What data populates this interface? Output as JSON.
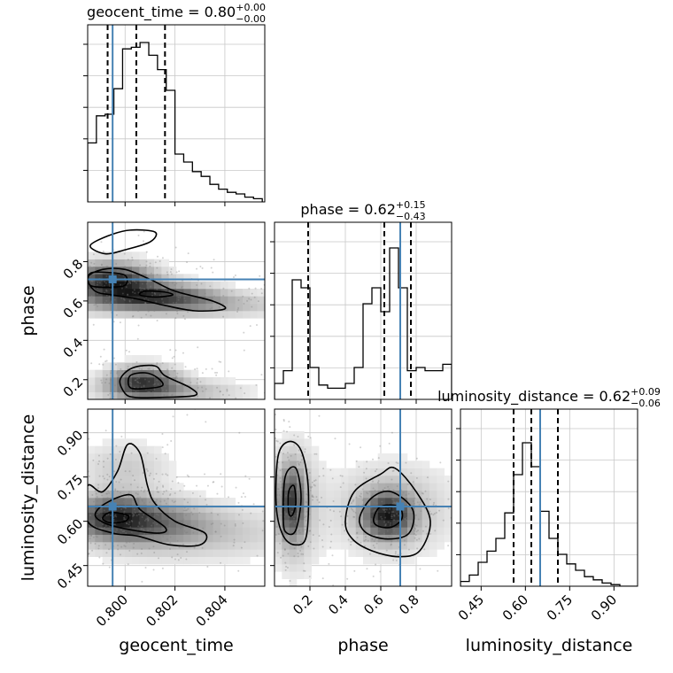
{
  "chart_data": {
    "type": "corner",
    "parameters": [
      "geocent_time",
      "phase",
      "luminosity_distance"
    ],
    "truths": {
      "geocent_time": 0.7995,
      "phase": 0.71,
      "luminosity_distance": 0.65
    },
    "truth_color": "#4682b4",
    "panels": [
      {
        "kind": "histogram",
        "param": "geocent_time",
        "title": {
          "prefix": "geocent_time = 0.80",
          "plus": "+0.00",
          "minus": "−0.00"
        },
        "xlim": [
          0.7985,
          0.8056
        ],
        "ylim": [
          0,
          1
        ],
        "bin_edges": [
          0.7985,
          0.79885,
          0.7992,
          0.79955,
          0.7999,
          0.80025,
          0.8006,
          0.80095,
          0.8013,
          0.80165,
          0.802,
          0.80235,
          0.8027,
          0.80305,
          0.8034,
          0.80375,
          0.8041,
          0.80445,
          0.8048,
          0.80515,
          0.8055
        ],
        "counts": [
          0.37,
          0.54,
          0.55,
          0.71,
          0.96,
          0.97,
          1.0,
          0.92,
          0.83,
          0.7,
          0.3,
          0.25,
          0.19,
          0.16,
          0.11,
          0.08,
          0.06,
          0.05,
          0.03,
          0.02
        ],
        "quantile_lines": [
          0.7993,
          0.80045,
          0.8016
        ],
        "truth": 0.7995
      },
      {
        "kind": "histogram",
        "param": "phase",
        "title": {
          "prefix": "phase = 0.62",
          "plus": "+0.15",
          "minus": "−0.43"
        },
        "xlim": [
          0.0,
          1.0
        ],
        "ylim": [
          0,
          1
        ],
        "bin_edges": [
          0.0,
          0.05,
          0.1,
          0.15,
          0.2,
          0.25,
          0.3,
          0.35,
          0.4,
          0.45,
          0.5,
          0.55,
          0.6,
          0.65,
          0.7,
          0.75,
          0.8,
          0.85,
          0.9,
          0.95,
          1.0
        ],
        "counts": [
          0.1,
          0.18,
          0.75,
          0.7,
          0.2,
          0.09,
          0.07,
          0.07,
          0.1,
          0.2,
          0.6,
          0.7,
          0.55,
          0.95,
          0.7,
          0.18,
          0.2,
          0.18,
          0.18,
          0.22
        ],
        "quantile_lines": [
          0.19,
          0.62,
          0.77
        ],
        "truth": 0.71
      },
      {
        "kind": "histogram",
        "param": "luminosity_distance",
        "title": {
          "prefix": "luminosity_distance = 0.62",
          "plus": "+0.09",
          "minus": "−0.06"
        },
        "xlim": [
          0.38,
          0.98
        ],
        "ylim": [
          0,
          1
        ],
        "bin_edges": [
          0.38,
          0.41,
          0.44,
          0.47,
          0.5,
          0.53,
          0.56,
          0.59,
          0.62,
          0.65,
          0.68,
          0.71,
          0.74,
          0.77,
          0.8,
          0.83,
          0.86,
          0.89,
          0.92,
          0.95,
          0.98
        ],
        "counts": [
          0.03,
          0.07,
          0.15,
          0.22,
          0.3,
          0.46,
          0.7,
          0.9,
          0.75,
          0.47,
          0.3,
          0.2,
          0.14,
          0.1,
          0.06,
          0.04,
          0.02,
          0.01,
          0.0,
          0.0
        ],
        "quantile_lines": [
          0.56,
          0.62,
          0.71
        ],
        "truth": 0.65
      },
      {
        "kind": "density2d",
        "x": "geocent_time",
        "y": "phase",
        "xlim": [
          0.7985,
          0.8056
        ],
        "ylim": [
          0.1,
          1.0
        ],
        "blobs": [
          {
            "cx": 0.7995,
            "cy": 0.7,
            "sx": 0.0011,
            "sy": 0.06,
            "rot": -12,
            "w": 1.0
          },
          {
            "cx": 0.8013,
            "cy": 0.63,
            "sx": 0.0015,
            "sy": 0.04,
            "rot": -8,
            "w": 0.7
          },
          {
            "cx": 0.802,
            "cy": 0.58,
            "sx": 0.0028,
            "sy": 0.04,
            "rot": -6,
            "w": 0.35
          },
          {
            "cx": 0.8007,
            "cy": 0.19,
            "sx": 0.0009,
            "sy": 0.05,
            "rot": 0,
            "w": 0.85
          },
          {
            "cx": 0.8018,
            "cy": 0.14,
            "sx": 0.0018,
            "sy": 0.04,
            "rot": 0,
            "w": 0.3
          }
        ],
        "contours": [
          [
            [
              0.7988,
              0.65
            ],
            [
              0.7985,
              0.72
            ],
            [
              0.7991,
              0.76
            ],
            [
              0.8,
              0.76
            ],
            [
              0.801,
              0.71
            ],
            [
              0.802,
              0.65
            ],
            [
              0.8035,
              0.6
            ],
            [
              0.804,
              0.56
            ],
            [
              0.8028,
              0.55
            ],
            [
              0.8015,
              0.58
            ],
            [
              0.8005,
              0.61
            ],
            [
              0.7995,
              0.63
            ]
          ],
          [
            [
              0.7986,
              0.68
            ],
            [
              0.7986,
              0.74
            ],
            [
              0.7993,
              0.745
            ],
            [
              0.8,
              0.73
            ],
            [
              0.8,
              0.68
            ],
            [
              0.7993,
              0.67
            ]
          ],
          [
            [
              0.8006,
              0.63
            ],
            [
              0.8008,
              0.65
            ],
            [
              0.8016,
              0.645
            ],
            [
              0.8019,
              0.63
            ],
            [
              0.8012,
              0.62
            ]
          ],
          [
            [
              0.7986,
              0.88
            ],
            [
              0.7993,
              0.93
            ],
            [
              0.8002,
              0.96
            ],
            [
              0.8012,
              0.95
            ],
            [
              0.801,
              0.9
            ],
            [
              0.8,
              0.86
            ],
            [
              0.7992,
              0.84
            ]
          ],
          [
            [
              0.8,
              0.13
            ],
            [
              0.7998,
              0.2
            ],
            [
              0.8003,
              0.26
            ],
            [
              0.8012,
              0.27
            ],
            [
              0.8016,
              0.22
            ],
            [
              0.8026,
              0.16
            ],
            [
              0.8028,
              0.12
            ],
            [
              0.8014,
              0.11
            ],
            [
              0.8004,
              0.11
            ]
          ],
          [
            [
              0.8002,
              0.16
            ],
            [
              0.8002,
              0.22
            ],
            [
              0.8008,
              0.235
            ],
            [
              0.8013,
              0.21
            ],
            [
              0.8015,
              0.17
            ],
            [
              0.8008,
              0.155
            ]
          ]
        ],
        "truth": [
          0.7995,
          0.71
        ]
      },
      {
        "kind": "density2d",
        "x": "geocent_time",
        "y": "luminosity_distance",
        "xlim": [
          0.7985,
          0.8056
        ],
        "ylim": [
          0.38,
          0.98
        ],
        "blobs": [
          {
            "cx": 0.7995,
            "cy": 0.62,
            "sx": 0.001,
            "sy": 0.045,
            "rot": 30,
            "w": 1.0
          },
          {
            "cx": 0.8008,
            "cy": 0.6,
            "sx": 0.0016,
            "sy": 0.05,
            "rot": 25,
            "w": 0.75
          },
          {
            "cx": 0.8025,
            "cy": 0.56,
            "sx": 0.003,
            "sy": 0.06,
            "rot": 20,
            "w": 0.3
          },
          {
            "cx": 0.8,
            "cy": 0.78,
            "sx": 0.0012,
            "sy": 0.06,
            "rot": 0,
            "w": 0.25
          }
        ],
        "contours": [
          [
            [
              0.7985,
              0.72
            ],
            [
              0.7991,
              0.7
            ],
            [
              0.7997,
              0.77
            ],
            [
              0.8001,
              0.86
            ],
            [
              0.8006,
              0.83
            ],
            [
              0.8009,
              0.72
            ],
            [
              0.8012,
              0.66
            ],
            [
              0.802,
              0.6
            ],
            [
              0.8032,
              0.56
            ],
            [
              0.803,
              0.52
            ],
            [
              0.8018,
              0.52
            ],
            [
              0.8005,
              0.55
            ],
            [
              0.7995,
              0.56
            ],
            [
              0.7985,
              0.6
            ]
          ],
          [
            [
              0.7988,
              0.62
            ],
            [
              0.7992,
              0.66
            ],
            [
              0.8002,
              0.69
            ],
            [
              0.8006,
              0.64
            ],
            [
              0.8016,
              0.58
            ],
            [
              0.8014,
              0.56
            ],
            [
              0.8003,
              0.57
            ],
            [
              0.7993,
              0.59
            ]
          ],
          [
            [
              0.7991,
              0.61
            ],
            [
              0.7994,
              0.63
            ],
            [
              0.8001,
              0.62
            ],
            [
              0.8,
              0.6
            ],
            [
              0.7994,
              0.595
            ]
          ]
        ],
        "truth": [
          0.7995,
          0.65
        ]
      },
      {
        "kind": "density2d",
        "x": "phase",
        "y": "luminosity_distance",
        "xlim": [
          0.0,
          1.0
        ],
        "ylim": [
          0.38,
          0.98
        ],
        "blobs": [
          {
            "cx": 0.09,
            "cy": 0.66,
            "sx": 0.05,
            "sy": 0.08,
            "rot": 0,
            "w": 0.75
          },
          {
            "cx": 0.64,
            "cy": 0.62,
            "sx": 0.09,
            "sy": 0.05,
            "rot": 0,
            "w": 0.95
          },
          {
            "cx": 0.66,
            "cy": 0.64,
            "sx": 0.22,
            "sy": 0.1,
            "rot": 0,
            "w": 0.25
          },
          {
            "cx": 0.12,
            "cy": 0.65,
            "sx": 0.09,
            "sy": 0.14,
            "rot": 0,
            "w": 0.25
          }
        ],
        "contours": [
          [
            [
              0.02,
              0.82
            ],
            [
              0.08,
              0.87
            ],
            [
              0.15,
              0.84
            ],
            [
              0.19,
              0.72
            ],
            [
              0.18,
              0.55
            ],
            [
              0.12,
              0.52
            ],
            [
              0.05,
              0.55
            ],
            [
              0.01,
              0.65
            ]
          ],
          [
            [
              0.05,
              0.6
            ],
            [
              0.06,
              0.75
            ],
            [
              0.12,
              0.78
            ],
            [
              0.15,
              0.68
            ],
            [
              0.12,
              0.57
            ],
            [
              0.07,
              0.56
            ]
          ],
          [
            [
              0.08,
              0.63
            ],
            [
              0.08,
              0.7
            ],
            [
              0.11,
              0.72
            ],
            [
              0.12,
              0.66
            ],
            [
              0.1,
              0.62
            ]
          ],
          [
            [
              0.4,
              0.6
            ],
            [
              0.45,
              0.7
            ],
            [
              0.6,
              0.76
            ],
            [
              0.68,
              0.78
            ],
            [
              0.8,
              0.7
            ],
            [
              0.88,
              0.6
            ],
            [
              0.82,
              0.5
            ],
            [
              0.7,
              0.48
            ],
            [
              0.55,
              0.5
            ],
            [
              0.44,
              0.54
            ]
          ],
          [
            [
              0.48,
              0.61
            ],
            [
              0.55,
              0.68
            ],
            [
              0.66,
              0.7
            ],
            [
              0.78,
              0.64
            ],
            [
              0.76,
              0.56
            ],
            [
              0.64,
              0.54
            ],
            [
              0.52,
              0.56
            ]
          ],
          [
            [
              0.56,
              0.61
            ],
            [
              0.6,
              0.65
            ],
            [
              0.7,
              0.65
            ],
            [
              0.72,
              0.61
            ],
            [
              0.66,
              0.58
            ],
            [
              0.58,
              0.585
            ]
          ]
        ],
        "truth": [
          0.71,
          0.65
        ]
      }
    ],
    "ticks": {
      "geocent_time": [
        0.8,
        0.802,
        0.804
      ],
      "phase": [
        0.2,
        0.4,
        0.6,
        0.8
      ],
      "luminosity_distance": [
        0.45,
        0.6,
        0.75,
        0.9
      ]
    },
    "tick_labels": {
      "geocent_time": [
        "0.800",
        "0.802",
        "0.804"
      ],
      "phase": [
        "0.2",
        "0.4",
        "0.6",
        "0.8"
      ],
      "luminosity_distance": [
        "0.45",
        "0.60",
        "0.75",
        "0.90"
      ]
    },
    "axis_labels": {
      "geocent_time": "geocent_time",
      "phase": "phase",
      "luminosity_distance": "luminosity_distance"
    },
    "grid": true
  }
}
